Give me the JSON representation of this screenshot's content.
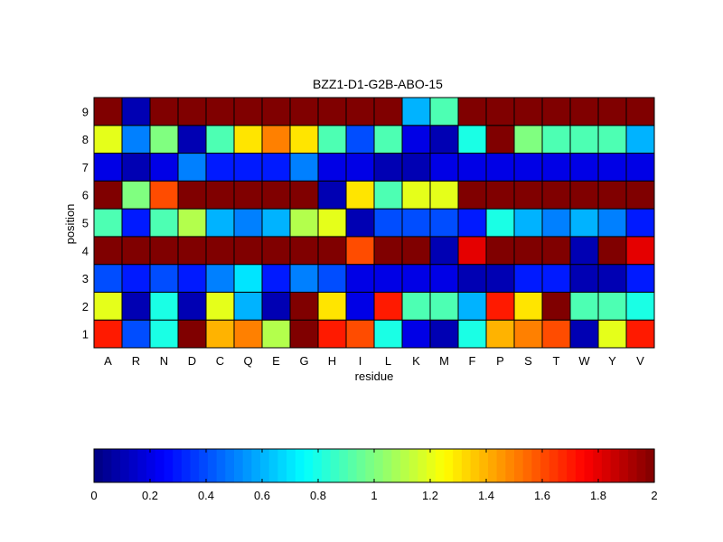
{
  "chart_data": {
    "type": "heatmap",
    "title": "BZZ1-D1-G2B-ABO-15",
    "xlabel": "residue",
    "ylabel": "position",
    "x_categories": [
      "A",
      "R",
      "N",
      "D",
      "C",
      "Q",
      "E",
      "G",
      "H",
      "I",
      "L",
      "K",
      "M",
      "F",
      "P",
      "S",
      "T",
      "W",
      "Y",
      "V"
    ],
    "y_categories": [
      "1",
      "2",
      "3",
      "4",
      "5",
      "6",
      "7",
      "8",
      "9"
    ],
    "values": [
      [
        1.7,
        0.4,
        0.8,
        2.0,
        1.4,
        1.5,
        1.1,
        2.0,
        1.7,
        1.6,
        0.8,
        0.2,
        0.1,
        0.8,
        1.4,
        1.5,
        1.6,
        0.1,
        1.2,
        1.7
      ],
      [
        1.2,
        0.1,
        0.8,
        0.1,
        1.2,
        0.6,
        0.1,
        2.0,
        1.3,
        0.2,
        1.7,
        0.9,
        0.9,
        0.6,
        1.7,
        1.3,
        2.0,
        0.9,
        0.9,
        0.8
      ],
      [
        0.4,
        0.3,
        0.4,
        0.3,
        0.5,
        0.7,
        0.3,
        0.5,
        0.4,
        0.2,
        0.2,
        0.2,
        0.2,
        0.1,
        0.1,
        0.3,
        0.3,
        0.1,
        0.1,
        0.3
      ],
      [
        2.0,
        2.0,
        2.0,
        2.0,
        2.0,
        2.0,
        2.0,
        2.0,
        2.0,
        1.6,
        2.0,
        2.0,
        0.1,
        1.8,
        2.0,
        2.0,
        2.0,
        0.1,
        2.0,
        1.8
      ],
      [
        0.9,
        0.3,
        0.9,
        1.1,
        0.6,
        0.5,
        0.6,
        1.1,
        1.2,
        0.1,
        0.4,
        0.4,
        0.4,
        0.3,
        0.8,
        0.6,
        0.5,
        0.6,
        0.5,
        0.3
      ],
      [
        2.0,
        1.0,
        1.6,
        2.0,
        2.0,
        2.0,
        2.0,
        2.0,
        0.1,
        1.3,
        0.9,
        1.2,
        1.2,
        2.0,
        2.0,
        2.0,
        2.0,
        2.0,
        2.0,
        2.0
      ],
      [
        0.2,
        0.1,
        0.2,
        0.5,
        0.3,
        0.3,
        0.3,
        0.5,
        0.2,
        0.2,
        0.1,
        0.1,
        0.2,
        0.2,
        0.2,
        0.2,
        0.2,
        0.2,
        0.2,
        0.2
      ],
      [
        1.2,
        0.5,
        1.0,
        0.1,
        0.9,
        1.3,
        1.5,
        1.3,
        0.9,
        0.4,
        0.9,
        0.2,
        0.1,
        0.8,
        2.0,
        1.0,
        0.9,
        0.9,
        0.9,
        0.6
      ],
      [
        2.0,
        0.1,
        2.0,
        2.0,
        2.0,
        2.0,
        2.0,
        2.0,
        2.0,
        2.0,
        2.0,
        0.6,
        0.9,
        2.0,
        2.0,
        2.0,
        2.0,
        2.0,
        2.0,
        2.0
      ]
    ],
    "colormap": "jet",
    "clim": [
      0,
      2
    ],
    "colorbar": {
      "orientation": "horizontal",
      "placement": "bottom",
      "ticks": [
        0,
        0.2,
        0.4,
        0.6,
        0.8,
        1,
        1.2,
        1.4,
        1.6,
        1.8,
        2
      ],
      "tick_labels": [
        "0",
        "0.2",
        "0.4",
        "0.6",
        "0.8",
        "1",
        "1.2",
        "1.4",
        "1.6",
        "1.8",
        "2"
      ]
    },
    "grid": false
  }
}
